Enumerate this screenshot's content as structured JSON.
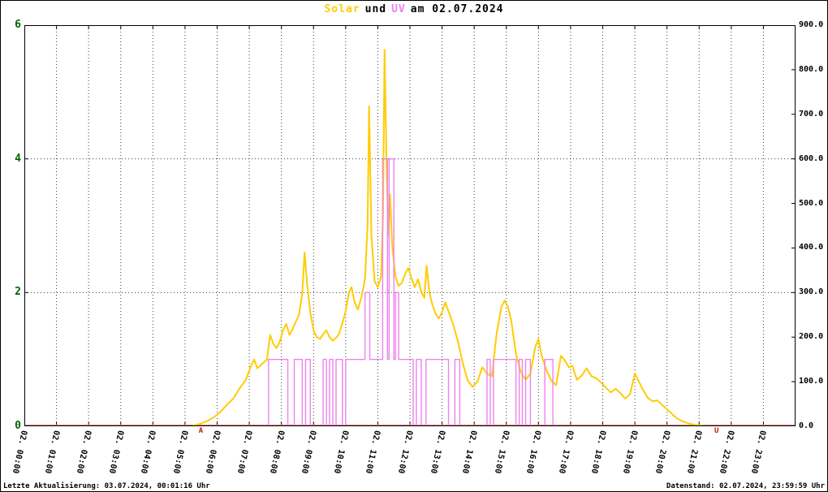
{
  "title": {
    "solar": "Solar",
    "conj": "und",
    "uv": "UV",
    "date": "am 02.07.2024"
  },
  "footer": {
    "left": "Letzte Aktualisierung: 03.07.2024, 00:01:16 Uhr",
    "right": "Datenstand: 02.07.2024, 23:59:59 Uhr"
  },
  "colors": {
    "solar": "#ffcc00",
    "uv": "#ee82ee",
    "baseline": "#f08080",
    "axis_left_labels": "#006400",
    "axis_right_labels": "#000000",
    "grid": "#3c3c3c",
    "marker": "#cc1100"
  },
  "chart_data": {
    "type": "line",
    "title": "Solar und UV am 02.07.2024",
    "x_range_hours": [
      0,
      24
    ],
    "grid": "dotted",
    "y_left": {
      "label_series": "UV",
      "range": [
        0,
        6
      ],
      "ticks": [
        "6",
        "4",
        "2",
        "0"
      ]
    },
    "y_right": {
      "label_series": "Solar",
      "range": [
        0,
        900
      ],
      "ticks": [
        "900.0",
        "800.0",
        "700.0",
        "600.0",
        "500.0",
        "400.0",
        "300.0",
        "200.0",
        "100.0",
        "0.0"
      ]
    },
    "x_ticks": [
      "02. 00:00",
      "02. 01:00",
      "02. 02:00",
      "02. 03:00",
      "02. 04:00",
      "02. 05:00",
      "02. 06:00",
      "02. 07:00",
      "02. 08:00",
      "02. 09:00",
      "02. 10:00",
      "02. 11:00",
      "02. 12:00",
      "02. 13:00",
      "02. 14:00",
      "02. 15:00",
      "02. 16:00",
      "02. 17:00",
      "02. 18:00",
      "02. 19:00",
      "02. 20:00",
      "02. 21:00",
      "02. 22:00",
      "02. 23:00"
    ],
    "baseline": {
      "value": 0,
      "color": "#f08080"
    },
    "sun_markers": [
      {
        "label": "A",
        "hour": 5.5
      },
      {
        "label": "U",
        "hour": 21.55
      }
    ],
    "series": [
      {
        "name": "Solar",
        "axis": "right",
        "style": "line",
        "color": "#ffcc00",
        "points": [
          [
            0,
            0
          ],
          [
            5.2,
            0
          ],
          [
            5.3,
            2
          ],
          [
            5.5,
            6
          ],
          [
            5.7,
            12
          ],
          [
            5.9,
            20
          ],
          [
            6.1,
            32
          ],
          [
            6.3,
            48
          ],
          [
            6.5,
            62
          ],
          [
            6.7,
            85
          ],
          [
            6.9,
            105
          ],
          [
            7.05,
            135
          ],
          [
            7.15,
            150
          ],
          [
            7.25,
            130
          ],
          [
            7.4,
            140
          ],
          [
            7.55,
            150
          ],
          [
            7.65,
            205
          ],
          [
            7.75,
            185
          ],
          [
            7.85,
            175
          ],
          [
            7.95,
            190
          ],
          [
            8.05,
            215
          ],
          [
            8.15,
            230
          ],
          [
            8.25,
            205
          ],
          [
            8.35,
            218
          ],
          [
            8.45,
            235
          ],
          [
            8.55,
            250
          ],
          [
            8.65,
            300
          ],
          [
            8.72,
            390
          ],
          [
            8.8,
            320
          ],
          [
            8.9,
            255
          ],
          [
            9.0,
            215
          ],
          [
            9.1,
            200
          ],
          [
            9.2,
            196
          ],
          [
            9.3,
            207
          ],
          [
            9.4,
            215
          ],
          [
            9.5,
            200
          ],
          [
            9.6,
            192
          ],
          [
            9.7,
            198
          ],
          [
            9.8,
            208
          ],
          [
            9.9,
            232
          ],
          [
            10.0,
            258
          ],
          [
            10.1,
            300
          ],
          [
            10.18,
            312
          ],
          [
            10.28,
            278
          ],
          [
            10.38,
            262
          ],
          [
            10.5,
            292
          ],
          [
            10.6,
            330
          ],
          [
            10.68,
            450
          ],
          [
            10.73,
            718
          ],
          [
            10.8,
            430
          ],
          [
            10.9,
            325
          ],
          [
            11.0,
            312
          ],
          [
            11.1,
            335
          ],
          [
            11.16,
            470
          ],
          [
            11.21,
            845
          ],
          [
            11.28,
            560
          ],
          [
            11.33,
            430
          ],
          [
            11.38,
            520
          ],
          [
            11.45,
            405
          ],
          [
            11.55,
            335
          ],
          [
            11.65,
            315
          ],
          [
            11.75,
            322
          ],
          [
            11.85,
            342
          ],
          [
            11.95,
            355
          ],
          [
            12.05,
            332
          ],
          [
            12.15,
            312
          ],
          [
            12.25,
            330
          ],
          [
            12.35,
            302
          ],
          [
            12.45,
            288
          ],
          [
            12.52,
            360
          ],
          [
            12.6,
            302
          ],
          [
            12.7,
            272
          ],
          [
            12.8,
            252
          ],
          [
            12.9,
            242
          ],
          [
            13.0,
            256
          ],
          [
            13.1,
            278
          ],
          [
            13.2,
            258
          ],
          [
            13.35,
            228
          ],
          [
            13.5,
            188
          ],
          [
            13.65,
            140
          ],
          [
            13.8,
            102
          ],
          [
            13.95,
            88
          ],
          [
            14.1,
            100
          ],
          [
            14.25,
            132
          ],
          [
            14.4,
            118
          ],
          [
            14.55,
            112
          ],
          [
            14.7,
            210
          ],
          [
            14.85,
            268
          ],
          [
            14.95,
            282
          ],
          [
            15.05,
            268
          ],
          [
            15.15,
            238
          ],
          [
            15.3,
            162
          ],
          [
            15.45,
            122
          ],
          [
            15.6,
            104
          ],
          [
            15.75,
            118
          ],
          [
            15.9,
            178
          ],
          [
            16.0,
            196
          ],
          [
            16.1,
            158
          ],
          [
            16.25,
            126
          ],
          [
            16.4,
            102
          ],
          [
            16.55,
            92
          ],
          [
            16.7,
            158
          ],
          [
            16.8,
            150
          ],
          [
            16.95,
            132
          ],
          [
            17.05,
            136
          ],
          [
            17.2,
            104
          ],
          [
            17.35,
            114
          ],
          [
            17.5,
            130
          ],
          [
            17.65,
            112
          ],
          [
            17.8,
            108
          ],
          [
            17.95,
            98
          ],
          [
            18.1,
            86
          ],
          [
            18.25,
            76
          ],
          [
            18.4,
            84
          ],
          [
            18.55,
            74
          ],
          [
            18.7,
            62
          ],
          [
            18.85,
            72
          ],
          [
            19.0,
            118
          ],
          [
            19.1,
            104
          ],
          [
            19.25,
            82
          ],
          [
            19.4,
            64
          ],
          [
            19.55,
            56
          ],
          [
            19.7,
            58
          ],
          [
            19.85,
            48
          ],
          [
            20.0,
            38
          ],
          [
            20.15,
            28
          ],
          [
            20.3,
            18
          ],
          [
            20.45,
            12
          ],
          [
            20.6,
            8
          ],
          [
            20.75,
            5
          ],
          [
            20.9,
            3
          ],
          [
            21.1,
            1
          ],
          [
            21.3,
            0
          ],
          [
            24,
            0
          ]
        ]
      },
      {
        "name": "UV",
        "axis": "left",
        "style": "step",
        "color": "#ee82ee",
        "points": [
          [
            0,
            0
          ],
          [
            7.6,
            1
          ],
          [
            8.2,
            0
          ],
          [
            8.4,
            1
          ],
          [
            8.65,
            0
          ],
          [
            8.75,
            1
          ],
          [
            8.9,
            0
          ],
          [
            9.3,
            1
          ],
          [
            9.4,
            0
          ],
          [
            9.5,
            1
          ],
          [
            9.6,
            0
          ],
          [
            9.7,
            1
          ],
          [
            9.9,
            0
          ],
          [
            10.0,
            1
          ],
          [
            10.6,
            2
          ],
          [
            10.75,
            1
          ],
          [
            11.15,
            4
          ],
          [
            11.3,
            1
          ],
          [
            11.35,
            4
          ],
          [
            11.5,
            1
          ],
          [
            11.55,
            2
          ],
          [
            11.65,
            1
          ],
          [
            12.1,
            0
          ],
          [
            12.2,
            1
          ],
          [
            12.35,
            0
          ],
          [
            12.5,
            1
          ],
          [
            13.2,
            0
          ],
          [
            13.4,
            1
          ],
          [
            13.55,
            0
          ],
          [
            14.4,
            1
          ],
          [
            14.5,
            0
          ],
          [
            14.6,
            1
          ],
          [
            15.3,
            0
          ],
          [
            15.4,
            1
          ],
          [
            15.5,
            0
          ],
          [
            15.6,
            1
          ],
          [
            15.75,
            0
          ],
          [
            16.2,
            1
          ],
          [
            16.45,
            0
          ]
        ]
      }
    ]
  }
}
